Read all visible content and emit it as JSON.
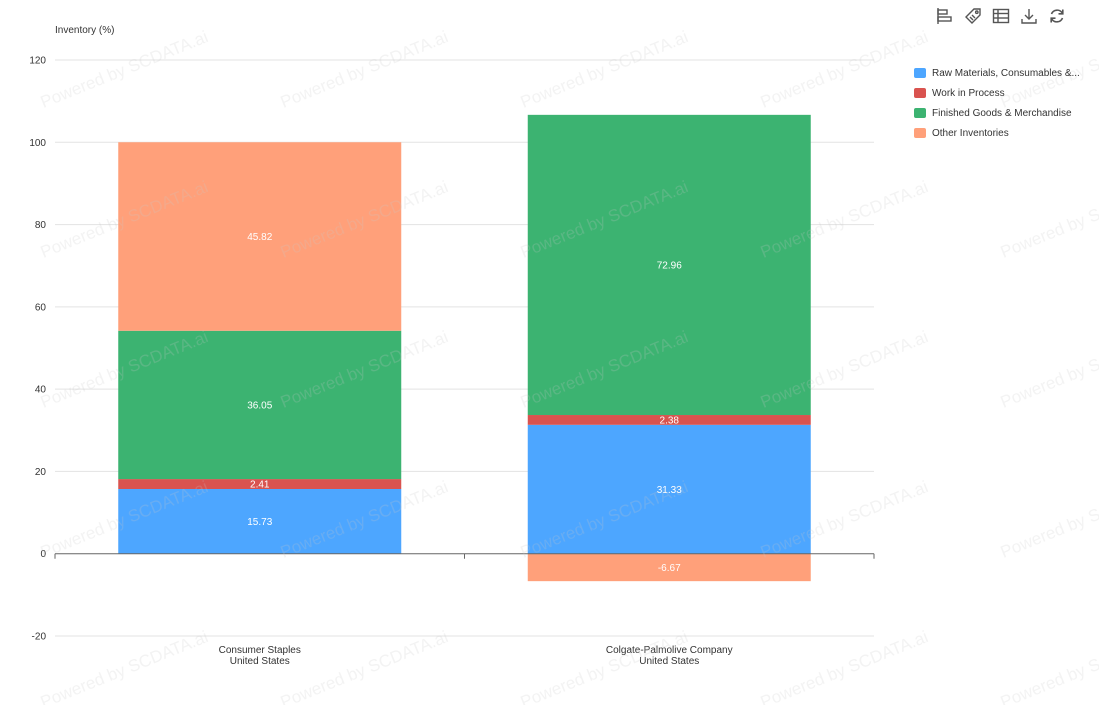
{
  "watermark": "Powered by SCDATA.ai",
  "toolbar": [
    {
      "icon": "bar-chart-icon",
      "name": "chart-type-button"
    },
    {
      "icon": "tag-icon",
      "name": "label-toggle-button"
    },
    {
      "icon": "table-icon",
      "name": "data-view-button"
    },
    {
      "icon": "download-icon",
      "name": "download-button"
    },
    {
      "icon": "refresh-icon",
      "name": "refresh-button"
    }
  ],
  "legend": [
    {
      "label": "Raw Materials, Consumables &...",
      "color": "#4da6ff"
    },
    {
      "label": "Work in Process",
      "color": "#d9534f"
    },
    {
      "label": "Finished Goods & Merchandise",
      "color": "#3cb371"
    },
    {
      "label": "Other Inventories",
      "color": "#ffa07a"
    }
  ],
  "chart_data": {
    "type": "bar",
    "stacked": true,
    "ylabel": "Inventory (%)",
    "ylim": [
      -20,
      120
    ],
    "yticks": [
      -20,
      0,
      20,
      40,
      60,
      80,
      100,
      120
    ],
    "grid": true,
    "legend_position": "right",
    "categories": [
      [
        "Consumer Staples",
        "United States"
      ],
      [
        "Colgate-Palmolive Company",
        "United States"
      ]
    ],
    "series": [
      {
        "name": "Raw Materials, Consumables &...",
        "color": "#4da6ff",
        "values": [
          15.73,
          31.33
        ]
      },
      {
        "name": "Work in Process",
        "color": "#d9534f",
        "values": [
          2.41,
          2.38
        ]
      },
      {
        "name": "Finished Goods & Merchandise",
        "color": "#3cb371",
        "values": [
          36.05,
          72.96
        ]
      },
      {
        "name": "Other Inventories",
        "color": "#ffa07a",
        "values": [
          45.82,
          -6.67
        ]
      }
    ]
  }
}
